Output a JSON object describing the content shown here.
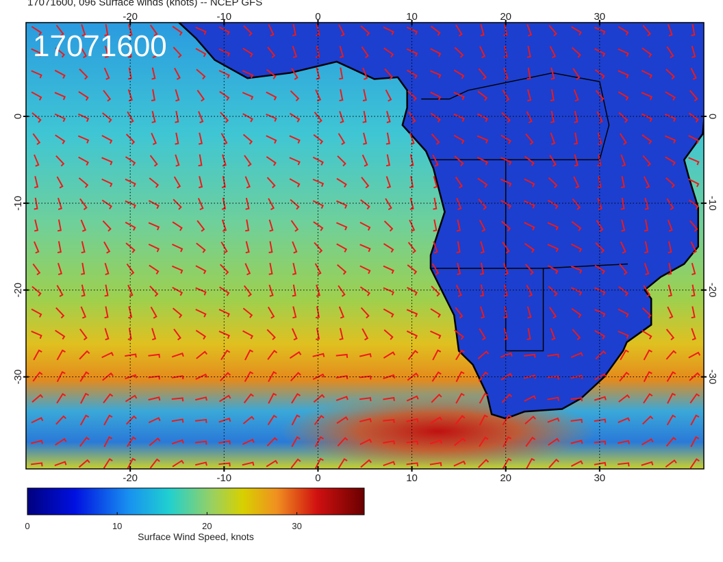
{
  "title": "17071600, 096 Surface winds (knots) -- NCEP GFS",
  "stamp": "17071600",
  "map": {
    "lonlim": [
      -31.1,
      41.1
    ],
    "latlim": [
      10.8,
      -40.6
    ],
    "lon_ticks": [
      -20,
      -10,
      0,
      10,
      20,
      30
    ],
    "lat_ticks": [
      0,
      -10,
      -20,
      -30
    ]
  },
  "colorbar": {
    "label": "Surface Wind Speed, knots",
    "lim": [
      0,
      37.5
    ],
    "ticks": [
      0,
      10,
      20,
      30
    ]
  }
}
